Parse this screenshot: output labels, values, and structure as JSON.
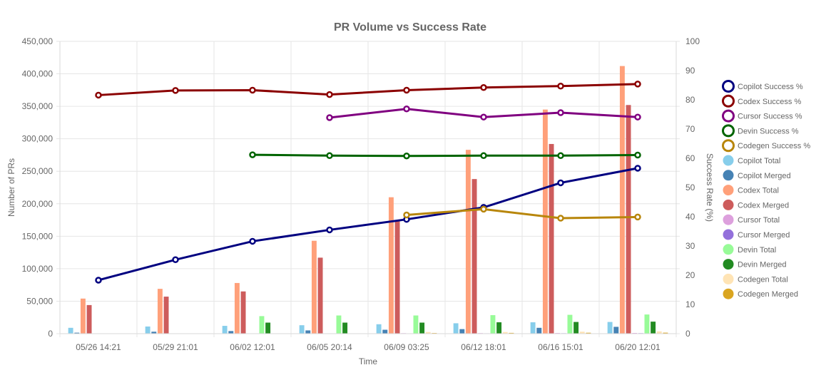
{
  "chart_data": {
    "type": "bar",
    "title": "PR Volume vs Success Rate",
    "xlabel": "Time",
    "ylabel": "Number of PRs",
    "y2label": "Success Rate (%)",
    "categories": [
      "05/26 14:21",
      "05/29 21:01",
      "06/02 12:01",
      "06/05 20:14",
      "06/09 03:25",
      "06/12 18:01",
      "06/16 15:01",
      "06/20 12:01"
    ],
    "ylim": [
      0,
      450000
    ],
    "yticks": [
      0,
      50000,
      100000,
      150000,
      200000,
      250000,
      300000,
      350000,
      400000,
      450000
    ],
    "ytick_labels": [
      "0",
      "50,000",
      "100,000",
      "150,000",
      "200,000",
      "250,000",
      "300,000",
      "350,000",
      "400,000",
      "450,000"
    ],
    "y2lim": [
      0,
      100
    ],
    "y2ticks": [
      0,
      10,
      20,
      30,
      40,
      50,
      60,
      70,
      80,
      90,
      100
    ],
    "y2tick_labels": [
      "0",
      "10",
      "20",
      "30",
      "40",
      "50",
      "60",
      "70",
      "80",
      "90",
      "100"
    ],
    "grid": true,
    "legend_position": "right",
    "bar_series": [
      {
        "name": "Copilot Total",
        "color": "#87ceeb",
        "values": [
          9000,
          11000,
          12000,
          13000,
          14500,
          16000,
          17500,
          18000
        ]
      },
      {
        "name": "Copilot Merged",
        "color": "#4682b4",
        "values": [
          1500,
          3000,
          4000,
          5000,
          6000,
          7000,
          9000,
          10500
        ]
      },
      {
        "name": "Codex Total",
        "color": "#ffa07a",
        "values": [
          54000,
          69000,
          78000,
          143000,
          210000,
          283000,
          345000,
          412000
        ]
      },
      {
        "name": "Codex Merged",
        "color": "#cd5c5c",
        "values": [
          44000,
          57000,
          65000,
          117000,
          175000,
          238000,
          292000,
          352000
        ]
      },
      {
        "name": "Cursor Total",
        "color": "#dda0dd",
        "values": [
          0,
          0,
          0,
          500,
          800,
          900,
          1000,
          1100
        ]
      },
      {
        "name": "Cursor Merged",
        "color": "#9370db",
        "values": [
          0,
          0,
          0,
          300,
          500,
          600,
          700,
          800
        ]
      },
      {
        "name": "Devin Total",
        "color": "#98fb98",
        "values": [
          0,
          0,
          27000,
          28000,
          28000,
          28500,
          29000,
          29500
        ]
      },
      {
        "name": "Devin Merged",
        "color": "#228b22",
        "values": [
          0,
          0,
          17000,
          17000,
          17000,
          17500,
          18000,
          18500
        ]
      },
      {
        "name": "Codegen Total",
        "color": "#ffe4b5",
        "values": [
          0,
          0,
          0,
          0,
          2500,
          2500,
          3000,
          3500
        ]
      },
      {
        "name": "Codegen Merged",
        "color": "#daa520",
        "values": [
          0,
          0,
          0,
          0,
          1000,
          1200,
          1400,
          1500
        ]
      }
    ],
    "line_series": [
      {
        "name": "Copilot Success %",
        "color": "#000080",
        "values": [
          18.3,
          25.3,
          31.6,
          35.5,
          39.1,
          43.2,
          51.6,
          56.6
        ]
      },
      {
        "name": "Codex Success %",
        "color": "#8b0000",
        "values": [
          81.6,
          83.2,
          83.3,
          81.8,
          83.3,
          84.2,
          84.7,
          85.4
        ]
      },
      {
        "name": "Cursor Success %",
        "color": "#800080",
        "values": [
          null,
          null,
          null,
          73.9,
          76.9,
          74.1,
          75.6,
          74.1
        ]
      },
      {
        "name": "Devin Success %",
        "color": "#006400",
        "values": [
          null,
          null,
          61.2,
          60.9,
          60.8,
          60.9,
          60.9,
          61.1
        ]
      },
      {
        "name": "Codegen Success %",
        "color": "#b8860b",
        "values": [
          null,
          null,
          null,
          null,
          40.6,
          42.6,
          39.5,
          39.9
        ]
      }
    ]
  }
}
